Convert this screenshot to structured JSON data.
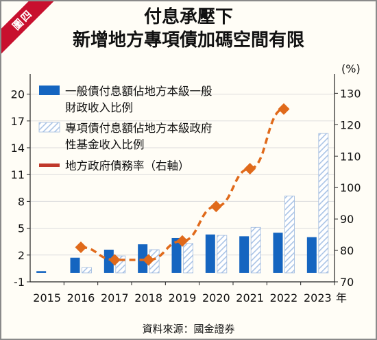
{
  "badge": "圖四",
  "title_lines": [
    "付息承壓下",
    "新增地方專項債加碼空間有限"
  ],
  "source": "資料來源：國金證券",
  "chart_data": {
    "type": "bar",
    "categories": [
      "2015",
      "2016",
      "2017",
      "2018",
      "2019",
      "2020",
      "2021",
      "2022",
      "2023"
    ],
    "x_unit_label": "年",
    "y_left": {
      "ticks": [
        -1,
        2,
        5,
        8,
        11,
        14,
        17,
        20
      ],
      "range": [
        -1,
        21.5
      ]
    },
    "y_right": {
      "ticks": [
        70,
        80,
        90,
        100,
        110,
        120,
        130
      ],
      "unit": "(%)",
      "range": [
        70,
        134
      ]
    },
    "series": [
      {
        "name": "一般債付息額佔地方本級一般財政收入比例",
        "type": "bar",
        "axis": "left",
        "color": "#1565c0",
        "values": [
          0.2,
          1.7,
          2.6,
          3.2,
          3.9,
          4.3,
          4.1,
          4.5,
          4.0
        ]
      },
      {
        "name": "專項債付息額佔地方本級政府性基金收入比例",
        "type": "bar",
        "axis": "left",
        "color": "#aac4e6",
        "pattern": "hatched",
        "values": [
          null,
          0.6,
          1.9,
          2.6,
          3.3,
          4.2,
          5.1,
          8.6,
          15.6
        ]
      },
      {
        "name": "地方政府債務率（右軸）",
        "type": "line",
        "axis": "right",
        "color": "#e06a1b",
        "style": "dashed",
        "values": [
          null,
          81,
          77,
          77,
          83,
          94,
          106,
          125,
          null
        ]
      }
    ],
    "legend": {
      "position": "top-left",
      "entries": [
        {
          "lines": [
            "一般債付息額佔地方本級一般",
            "財政收入比例"
          ],
          "swatch": "solid",
          "color": "#1565c0"
        },
        {
          "lines": [
            "專項債付息額佔地方本級政府",
            "性基金收入比例"
          ],
          "swatch": "hatched",
          "color": "#aac4e6"
        },
        {
          "lines": [
            "地方政府債務率（右軸）"
          ],
          "swatch": "line",
          "color": "#c0392b"
        }
      ]
    }
  }
}
